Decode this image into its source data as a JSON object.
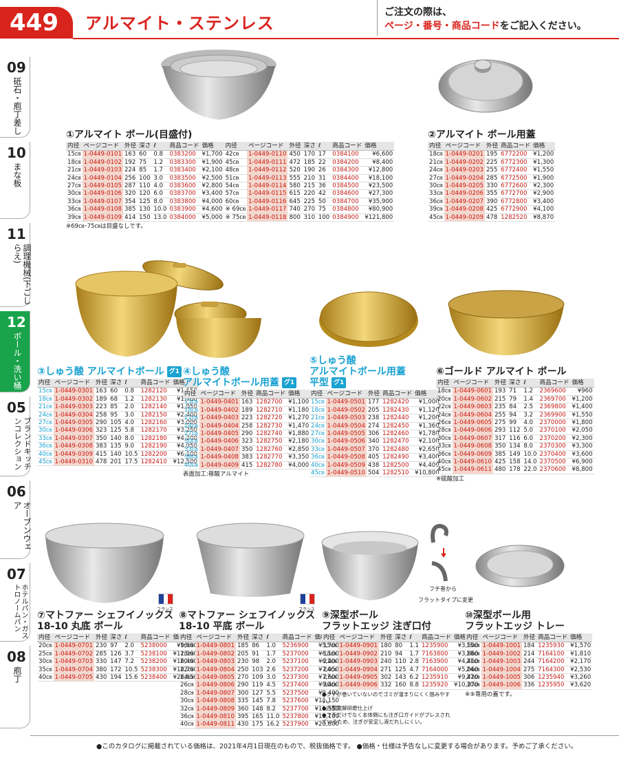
{
  "header": {
    "page_number": "449",
    "title": "アルマイト・ステンレス",
    "note_line1": "ご注文の際は、",
    "note_red": "ページ・番号・商品コード",
    "note_tail": "をご記入ください。"
  },
  "tabs": [
    {
      "num": "09",
      "label": "砥石・庖丁差し"
    },
    {
      "num": "10",
      "label": "まな板"
    },
    {
      "num": "11",
      "label": "調理機械(下ごしらえ)"
    },
    {
      "num": "12",
      "label": "ボール・洗い桶"
    },
    {
      "num": "05",
      "label": "ブランドキッチンコレクション"
    },
    {
      "num": "06",
      "label": "オーブンウェア"
    },
    {
      "num": "07",
      "label": "ホテルパン・ガストロノームパン"
    },
    {
      "num": "08",
      "label": "庖丁"
    }
  ],
  "columns": {
    "std": [
      "内径",
      "ページコード",
      "外径",
      "深さ",
      "ℓ",
      "商品コード",
      "価格"
    ],
    "lid": [
      "内径",
      "ページコード",
      "外径",
      "商品コード",
      "価格"
    ]
  },
  "sec1": {
    "title": "①アルマイト ボール(目盛付)",
    "rows": [
      [
        "15㎝",
        "1-0449-0101",
        "163",
        "60",
        "0.8",
        "0383200",
        "¥1,700"
      ],
      [
        "18㎝",
        "1-0449-0102",
        "192",
        "75",
        "1.2",
        "0383300",
        "¥1,900"
      ],
      [
        "21㎝",
        "1-0449-0103",
        "224",
        "85",
        "1.7",
        "0383400",
        "¥2,100"
      ],
      [
        "24㎝",
        "1-0449-0104",
        "256",
        "100",
        "3.0",
        "0383500",
        "¥2,500"
      ],
      [
        "27㎝",
        "1-0449-0105",
        "287",
        "110",
        "4.0",
        "0383600",
        "¥2,800"
      ],
      [
        "30㎝",
        "1-0449-0106",
        "320",
        "120",
        "6.0",
        "0383700",
        "¥3,400"
      ],
      [
        "33㎝",
        "1-0449-0107",
        "354",
        "125",
        "8.0",
        "0383800",
        "¥4,000"
      ],
      [
        "36㎝",
        "1-0449-0108",
        "385",
        "130",
        "10.0",
        "0383900",
        "¥4,600"
      ],
      [
        "39㎝",
        "1-0449-0109",
        "414",
        "150",
        "13.0",
        "0384000",
        "¥5,000"
      ]
    ],
    "rows2": [
      [
        "42㎝",
        "1-0449-0110",
        "450",
        "170",
        "17",
        "0384100",
        "¥6,600"
      ],
      [
        "45㎝",
        "1-0449-0111",
        "472",
        "185",
        "22",
        "0384200",
        "¥8,400"
      ],
      [
        "48㎝",
        "1-0449-0112",
        "520",
        "190",
        "26",
        "0384300",
        "¥12,800"
      ],
      [
        "51㎝",
        "1-0449-0113",
        "555",
        "210",
        "31",
        "0384400",
        "¥18,100"
      ],
      [
        "54㎝",
        "1-0449-0114",
        "580",
        "215",
        "36",
        "0384500",
        "¥23,500"
      ],
      [
        "57㎝",
        "1-0449-0115",
        "615",
        "220",
        "42",
        "0384600",
        "¥27,300"
      ],
      [
        "60㎝",
        "1-0449-0116",
        "645",
        "225",
        "50",
        "0384700",
        "¥35,900"
      ],
      [
        "※ 69㎝",
        "1-0449-0117",
        "740",
        "270",
        "75",
        "0384800",
        "¥80,900"
      ],
      [
        "※ 75㎝",
        "1-0449-0118",
        "800",
        "310",
        "100",
        "0384900",
        "¥121,800"
      ]
    ],
    "note": "※69㎝･75㎝は目盛なしです。"
  },
  "sec2": {
    "title": "②アルマイト ボール用蓋",
    "rows": [
      [
        "18㎝",
        "1-0449-0201",
        "195",
        "6772200",
        "¥1,200"
      ],
      [
        "21㎝",
        "1-0449-0202",
        "225",
        "6772300",
        "¥1,300"
      ],
      [
        "24㎝",
        "1-0449-0203",
        "255",
        "6772400",
        "¥1,550"
      ],
      [
        "27㎝",
        "1-0449-0204",
        "285",
        "6772500",
        "¥1,900"
      ],
      [
        "30㎝",
        "1-0449-0205",
        "330",
        "6772600",
        "¥2,300"
      ],
      [
        "33㎝",
        "1-0449-0206",
        "355",
        "6772700",
        "¥2,900"
      ],
      [
        "36㎝",
        "1-0449-0207",
        "390",
        "6772800",
        "¥3,400"
      ],
      [
        "39㎝",
        "1-0449-0208",
        "425",
        "6772900",
        "¥4,100"
      ],
      [
        "45㎝",
        "1-0449-0209",
        "478",
        "1282520",
        "¥8,870"
      ]
    ]
  },
  "sec3": {
    "title": "③しゅう酸 アルマイトボール",
    "badge": "グ1",
    "rows": [
      [
        "15㎝",
        "1-0449-0301",
        "163",
        "60",
        "0.8",
        "1282120",
        "¥1,650"
      ],
      [
        "18㎝",
        "1-0449-0302",
        "189",
        "68",
        "1.2",
        "1282130",
        "¥1,780"
      ],
      [
        "21㎝",
        "1-0449-0303",
        "223",
        "85",
        "2.0",
        "1282140",
        "¥1,950"
      ],
      [
        "24㎝",
        "1-0449-0304",
        "258",
        "95",
        "3.0",
        "1282150",
        "¥2,400"
      ],
      [
        "27㎝",
        "1-0449-0305",
        "290",
        "105",
        "4.0",
        "1282160",
        "¥3,000"
      ],
      [
        "30㎝",
        "1-0449-0306",
        "323",
        "125",
        "5.8",
        "1282170",
        "¥3,250"
      ],
      [
        "33㎝",
        "1-0449-0307",
        "350",
        "140",
        "8.0",
        "1282180",
        "¥4,200"
      ],
      [
        "36㎝",
        "1-0449-0308",
        "383",
        "135",
        "9.0",
        "1282190",
        "¥4,950"
      ],
      [
        "40㎝",
        "1-0449-0309",
        "415",
        "140",
        "10.5",
        "1282200",
        "¥6,100"
      ],
      [
        "45㎝",
        "1-0449-0310",
        "478",
        "201",
        "17.5",
        "1282410",
        "¥12,500"
      ]
    ]
  },
  "sec4": {
    "title": "④しゅう酸\nアルマイトボール用蓋",
    "badge": "グ1",
    "rows": [
      [
        "15㎝",
        "1-0449-0401",
        "163",
        "1282700",
        "¥1,100"
      ],
      [
        "18㎝",
        "1-0449-0402",
        "189",
        "1282710",
        "¥1,180"
      ],
      [
        "21㎝",
        "1-0449-0403",
        "223",
        "1282720",
        "¥1,270"
      ],
      [
        "24㎝",
        "1-0449-0404",
        "258",
        "1282730",
        "¥1,470"
      ],
      [
        "27㎝",
        "1-0449-0405",
        "290",
        "1282740",
        "¥1,880"
      ],
      [
        "30㎝",
        "1-0449-0406",
        "323",
        "1282750",
        "¥2,180"
      ],
      [
        "33㎝",
        "1-0449-0407",
        "350",
        "1282760",
        "¥2,850"
      ],
      [
        "36㎝",
        "1-0449-0408",
        "383",
        "1282770",
        "¥3,350"
      ],
      [
        "40㎝",
        "1-0449-0409",
        "415",
        "1282780",
        "¥4,000"
      ]
    ],
    "note": "表面加工:蓚酸アルマイト"
  },
  "sec5": {
    "title": "⑤しゅう酸\nアルマイトボール用蓋\n平型",
    "badge": "グ1",
    "rows": [
      [
        "15㎝",
        "1-0449-0501",
        "177",
        "1282420",
        "¥1,000"
      ],
      [
        "18㎝",
        "1-0449-0502",
        "205",
        "1282430",
        "¥1,120"
      ],
      [
        "21㎝",
        "1-0449-0503",
        "238",
        "1282440",
        "¥1,200"
      ],
      [
        "24㎝",
        "1-0449-0504",
        "274",
        "1282450",
        "¥1,360"
      ],
      [
        "27㎝",
        "1-0449-0505",
        "306",
        "1282460",
        "¥1,780"
      ],
      [
        "30㎝",
        "1-0449-0506",
        "340",
        "1282470",
        "¥2,100"
      ],
      [
        "33㎝",
        "1-0449-0507",
        "370",
        "1282480",
        "¥2,650"
      ],
      [
        "36㎝",
        "1-0449-0508",
        "405",
        "1282490",
        "¥3,400"
      ],
      [
        "40㎝",
        "1-0449-0509",
        "438",
        "1282500",
        "¥4,400"
      ],
      [
        "45㎝",
        "1-0449-0510",
        "504",
        "1282510",
        "¥10,800"
      ]
    ]
  },
  "sec6": {
    "title": "⑥ゴールド アルマイト ボール",
    "rows": [
      [
        "18㎝",
        "1-0449-0601",
        "193",
        "71",
        "1.2",
        "2369600",
        "¥960"
      ],
      [
        "20㎝",
        "1-0449-0602",
        "215",
        "79",
        "1.4",
        "2369700",
        "¥1,200"
      ],
      [
        "22㎝",
        "1-0449-0603",
        "235",
        "84",
        "2.5",
        "2369800",
        "¥1,400"
      ],
      [
        "24㎝",
        "1-0449-0604",
        "255",
        "94",
        "3.2",
        "2369900",
        "¥1,550"
      ],
      [
        "26㎝",
        "1-0449-0605",
        "275",
        "99",
        "4.0",
        "2370000",
        "¥1,800"
      ],
      [
        "28㎝",
        "1-0449-0606",
        "293",
        "112",
        "5.0",
        "2370100",
        "¥2,050"
      ],
      [
        "30㎝",
        "1-0449-0607",
        "317",
        "116",
        "6.0",
        "2370200",
        "¥2,300"
      ],
      [
        "33㎝",
        "1-0449-0608",
        "350",
        "134",
        "8.0",
        "2370300",
        "¥3,300"
      ],
      [
        "36㎝",
        "1-0449-0609",
        "385",
        "149",
        "10.0",
        "2370400",
        "¥3,600"
      ],
      [
        "40㎝",
        "1-0449-0610",
        "425",
        "158",
        "14.0",
        "2370500",
        "¥6,900"
      ],
      [
        "45㎝",
        "1-0449-0611",
        "480",
        "178",
        "22.0",
        "2370600",
        "¥8,800"
      ]
    ],
    "note": "※硫酸加工"
  },
  "sec7": {
    "title": "⑦マトファー シェフイノックス\n 18-10 丸底 ボール",
    "flag": "フランス",
    "rows": [
      [
        "20㎝",
        "1-0449-0701",
        "230",
        "97",
        "2.0",
        "5238000",
        "¥9,600"
      ],
      [
        "25㎝",
        "1-0449-0702",
        "285",
        "126",
        "3.7",
        "5238100",
        "¥12,000"
      ],
      [
        "30㎝",
        "1-0449-0703",
        "330",
        "147",
        "7.2",
        "5238200",
        "¥16,400"
      ],
      [
        "35㎝",
        "1-0449-0704",
        "380",
        "172",
        "10.5",
        "5238300",
        "¥18,700"
      ],
      [
        "40㎝",
        "1-0449-0705",
        "430",
        "194",
        "15.6",
        "5238400",
        "¥26,650"
      ]
    ]
  },
  "sec8": {
    "title": "⑧マトファー シェフイノックス\n 18-10 平底 ボール",
    "flag": "フランス",
    "rows": [
      [
        "16㎝",
        "1-0449-0801",
        "185",
        "86",
        "1.0",
        "5236900",
        "¥5,700"
      ],
      [
        "18㎝",
        "1-0449-0802",
        "205",
        "91",
        "1.7",
        "5237000",
        "¥6,100"
      ],
      [
        "20㎝",
        "1-0449-0803",
        "230",
        "98",
        "2.0",
        "5237100",
        "¥6,400"
      ],
      [
        "22㎝",
        "1-0449-0804",
        "250",
        "103",
        "2.6",
        "5237200",
        "¥7,050"
      ],
      [
        "24㎝",
        "1-0449-0805",
        "270",
        "109",
        "3.0",
        "5237300",
        "¥7,600"
      ],
      [
        "26㎝",
        "1-0449-0806",
        "290",
        "119",
        "4.5",
        "5237400",
        "¥9,400"
      ],
      [
        "28㎝",
        "1-0449-0807",
        "300",
        "127",
        "5.5",
        "5237500",
        "¥9,400"
      ],
      [
        "30㎝",
        "1-0449-0808",
        "335",
        "145",
        "7.8",
        "5237600",
        "¥11,150"
      ],
      [
        "32㎝",
        "1-0449-0809",
        "360",
        "148",
        "8.2",
        "5237700",
        "¥11,550"
      ],
      [
        "36㎝",
        "1-0449-0810",
        "395",
        "165",
        "11.0",
        "5237800",
        "¥16,100"
      ],
      [
        "40㎝",
        "1-0449-0811",
        "430",
        "175",
        "16.2",
        "5237900",
        "¥20,800"
      ]
    ]
  },
  "sec9": {
    "title": "⑨深型ボール\n フラットエッジ 注ぎ口付",
    "rows": [
      [
        "15㎝",
        "1-0449-0901",
        "180",
        "80",
        "1.1",
        "1235900",
        "¥3,500"
      ],
      [
        "18㎝",
        "1-0449-0902",
        "210",
        "94",
        "1.7",
        "7163800",
        "¥3,860"
      ],
      [
        "21㎝",
        "1-0449-0903",
        "240",
        "110",
        "2.8",
        "7163900",
        "¥4,460"
      ],
      [
        "24㎝",
        "1-0449-0904",
        "271",
        "125",
        "4.7",
        "7164000",
        "¥5,060"
      ],
      [
        "27㎝",
        "1-0449-0905",
        "302",
        "143",
        "6.2",
        "1235910",
        "¥9,420"
      ],
      [
        "30㎝",
        "1-0449-0906",
        "332",
        "160",
        "8.8",
        "1235920",
        "¥10,270"
      ]
    ],
    "notes": [
      "●フチが巻いていないのでゴミが溜まりにくく掴みやすい。",
      "●内面電解研磨仕上げ",
      "●フチだけでなく本体側にも注ぎ口ガイドがプレスされているため、注ぎが安定し液だれしにくい。"
    ],
    "diagram": {
      "a": "フチ巻から",
      "b": "フラットタイプに変更"
    }
  },
  "sec10": {
    "title": "⑩深型ボール用\n フラットエッジ トレー",
    "rows": [
      [
        "15㎝",
        "1-0449-1001",
        "184",
        "1235930",
        "¥1,570"
      ],
      [
        "18㎝",
        "1-0449-1002",
        "214",
        "7164100",
        "¥1,810"
      ],
      [
        "21㎝",
        "1-0449-1003",
        "244",
        "7164200",
        "¥2,170"
      ],
      [
        "24㎝",
        "1-0449-1004",
        "275",
        "7164300",
        "¥2,530"
      ],
      [
        "27㎝",
        "1-0449-1005",
        "306",
        "1235940",
        "¥3,260"
      ],
      [
        "30㎝",
        "1-0449-1006",
        "336",
        "1235950",
        "¥3,620"
      ]
    ],
    "note": "※⑨専用の蓋です。"
  },
  "footer": "●このカタログに掲載されている価格は、2021年4月1日現在のもので、税抜価格です。 ●価格・仕様は予告なしに変更する場合があります。予めご了承ください。"
}
